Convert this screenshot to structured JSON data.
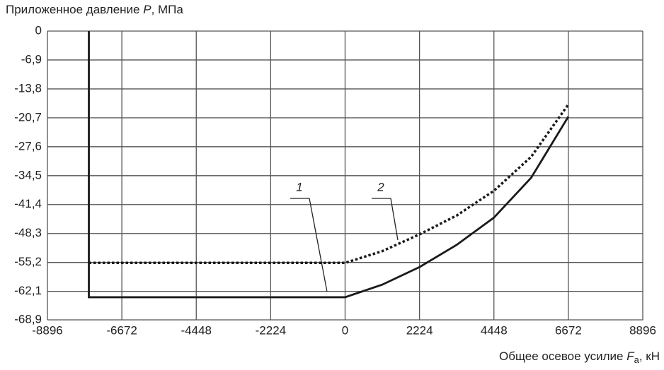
{
  "chart_data": {
    "type": "line",
    "y_label": [
      "Приложенное давление ",
      "P",
      ", МПа"
    ],
    "x_label": [
      "Общее осевое усилие ",
      "F",
      "a",
      ", кН"
    ],
    "xlim": [
      -8896,
      8896
    ],
    "xticks": [
      -8896,
      -6672,
      -4448,
      -2224,
      0,
      2224,
      4448,
      6672,
      8896
    ],
    "ylim": [
      -68.9,
      0
    ],
    "yticks": [
      0,
      {
        "value": -6.9,
        "label": "-6,9"
      },
      {
        "value": -13.8,
        "label": "-13,8"
      },
      {
        "value": -20.7,
        "label": "-20,7"
      },
      {
        "value": -27.6,
        "label": "-27,6"
      },
      {
        "value": -34.5,
        "label": "-34,5"
      },
      {
        "value": -41.4,
        "label": "-41,4"
      },
      {
        "value": -48.3,
        "label": "-48,3"
      },
      {
        "value": -55.2,
        "label": "-55,2"
      },
      {
        "value": -62.1,
        "label": "-62,1"
      },
      {
        "value": -68.9,
        "label": "-68,9"
      }
    ],
    "grid": true,
    "series": [
      {
        "name": "1",
        "color": "#1a1a1a",
        "style": "solid",
        "x": [
          -7658,
          -7658,
          0,
          1112,
          2224,
          3336,
          4448,
          5560,
          6672
        ],
        "values": [
          0,
          -63.5,
          -63.5,
          -60.5,
          -56.3,
          -51,
          -44.5,
          -35,
          -20.4
        ]
      },
      {
        "name": "2",
        "color": "#1a1a1a",
        "style": "dotted",
        "x": [
          -7658,
          0,
          1112,
          2224,
          3336,
          4448,
          5560,
          6672
        ],
        "values": [
          -55.3,
          -55.3,
          -52.5,
          -48.5,
          -44,
          -38.1,
          -30,
          -17.5
        ]
      }
    ]
  }
}
